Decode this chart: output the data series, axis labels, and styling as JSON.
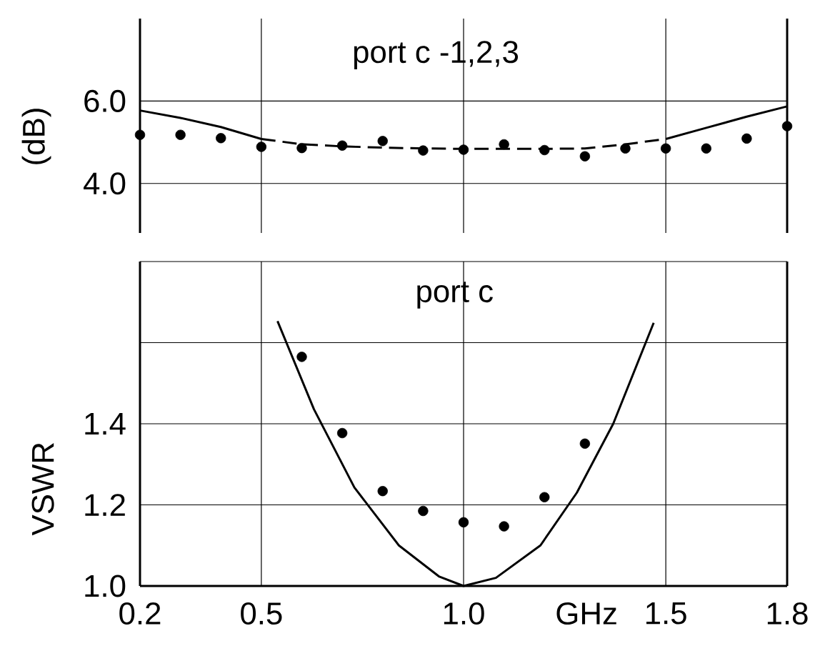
{
  "chart_data": [
    {
      "type": "line",
      "title": "port c -1,2,3",
      "ylabel": "(dB)",
      "xlim": [
        0.2,
        1.8
      ],
      "ylim": [
        2.8,
        8.0
      ],
      "xticks": [
        0.2,
        0.5,
        1,
        1.5,
        1.8
      ],
      "yticks": [
        {
          "value": 4.0,
          "label": "4.0"
        },
        {
          "value": 6.0,
          "label": "6.0"
        }
      ],
      "grid": true,
      "tick_labels": "y",
      "series": [
        {
          "type": "scatter",
          "color": "#000000",
          "marker": "circle",
          "x": [
            0.2,
            0.3,
            0.4,
            0.5,
            0.6,
            0.7,
            0.8,
            0.9,
            1.0,
            1.1,
            1.2,
            1.3,
            1.4,
            1.5,
            1.6,
            1.7,
            1.8
          ],
          "values": [
            5.18,
            5.18,
            5.1,
            4.89,
            4.86,
            4.92,
            5.03,
            4.8,
            4.82,
            4.95,
            4.81,
            4.66,
            4.85,
            4.85,
            4.85,
            5.09,
            5.39
          ]
        },
        {
          "color": "#000000",
          "line_style": "solid",
          "x": [
            0.2,
            0.3,
            0.4,
            0.5
          ],
          "values": [
            5.77,
            5.59,
            5.37,
            5.08
          ]
        },
        {
          "color": "#000000",
          "line_style": "dashed",
          "x": [
            0.5,
            0.6,
            0.7,
            0.8,
            0.9,
            1.0,
            1.1,
            1.2,
            1.3,
            1.4,
            1.5
          ],
          "values": [
            5.08,
            4.95,
            4.9,
            4.87,
            4.85,
            4.84,
            4.84,
            4.84,
            4.85,
            4.95,
            5.08
          ]
        },
        {
          "color": "#000000",
          "line_style": "solid",
          "x": [
            1.5,
            1.6,
            1.7,
            1.8
          ],
          "values": [
            5.08,
            5.35,
            5.62,
            5.87
          ]
        }
      ]
    },
    {
      "type": "line",
      "title": "port c",
      "xlabel": "GHz",
      "ylabel": "VSWR",
      "xlim": [
        0.2,
        1.8
      ],
      "ylim": [
        1.0,
        1.8
      ],
      "xticks": [
        0.2,
        0.5,
        {
          "value": 1.0,
          "label": "1.0"
        },
        1.5,
        1.8
      ],
      "yticks": [
        {
          "value": 1.0,
          "label": "1.0"
        },
        1.2,
        1.4,
        {
          "value": 1.6,
          "label": null
        },
        {
          "value": 1.8,
          "label": null
        }
      ],
      "grid": true,
      "series": [
        {
          "type": "scatter",
          "color": "#000000",
          "marker": "circle",
          "x": [
            0.6,
            0.7,
            0.8,
            0.9,
            1.0,
            1.1,
            1.2,
            1.3
          ],
          "values": [
            1.565,
            1.377,
            1.234,
            1.185,
            1.157,
            1.147,
            1.219,
            1.351
          ]
        },
        {
          "color": "#000000",
          "line_style": "solid",
          "x": [
            0.54,
            0.63,
            0.73,
            0.84,
            0.94,
            1.0,
            1.08,
            1.19,
            1.28,
            1.37,
            1.47
          ],
          "values": [
            1.653,
            1.436,
            1.243,
            1.1,
            1.023,
            1.0,
            1.02,
            1.1,
            1.23,
            1.4,
            1.649
          ]
        }
      ]
    }
  ]
}
